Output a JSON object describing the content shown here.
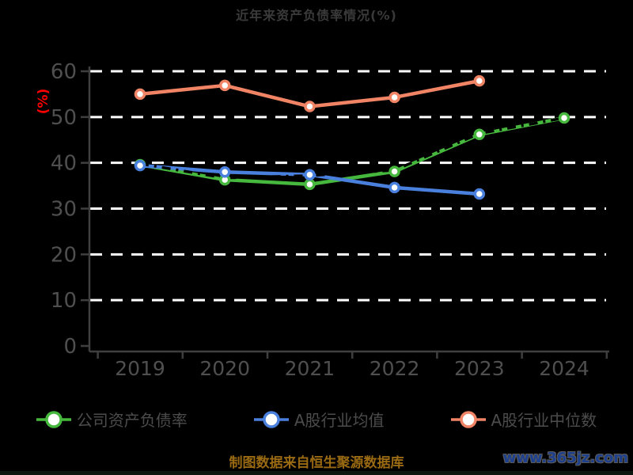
{
  "title": "近年来资产负债率情况(%)",
  "y_axis_unit": "(%)",
  "colors": {
    "background": "#000000",
    "title_text": "#3a3a3a",
    "axis_text": "#4f4f4f",
    "axis_line": "#3f3f3f",
    "gridline": "#ffffff",
    "unit_label_red": "#ff0000",
    "footer_text": "#9a6a12",
    "watermark_blue": "#1c3f8e"
  },
  "chart_data": {
    "type": "line",
    "x": [
      "2019",
      "2020",
      "2021",
      "2022",
      "2023",
      "2024"
    ],
    "y_ticks": [
      0,
      10,
      20,
      30,
      40,
      50,
      60
    ],
    "ylim": [
      0,
      60
    ],
    "grid": "horizontal white dashed lines",
    "legend_position": "bottom",
    "title": "近年来资产负债率情况(%)",
    "ylabel": "(%)",
    "series": [
      {
        "name": "公司资产负债率",
        "color": "#47b83e",
        "values": [
          39.6,
          36.3,
          35.3,
          38.1,
          46.2,
          49.8
        ]
      },
      {
        "name": "A股行业均值",
        "color": "#4a80dd",
        "values": [
          39.4,
          38.0,
          37.4,
          34.6,
          33.2,
          null
        ]
      },
      {
        "name": "A股行业中位数",
        "color": "#f08465",
        "values": [
          55.0,
          56.9,
          52.3,
          54.3,
          57.9,
          null
        ]
      }
    ],
    "overlay_dash_line": {
      "color": "#000000",
      "values": [
        39.8,
        36.7,
        37.2,
        38.4,
        46.4,
        49.8
      ]
    }
  },
  "footer": {
    "source_text": "制图数据来自恒生聚源数据库",
    "watermark": "www.365jz.com"
  }
}
